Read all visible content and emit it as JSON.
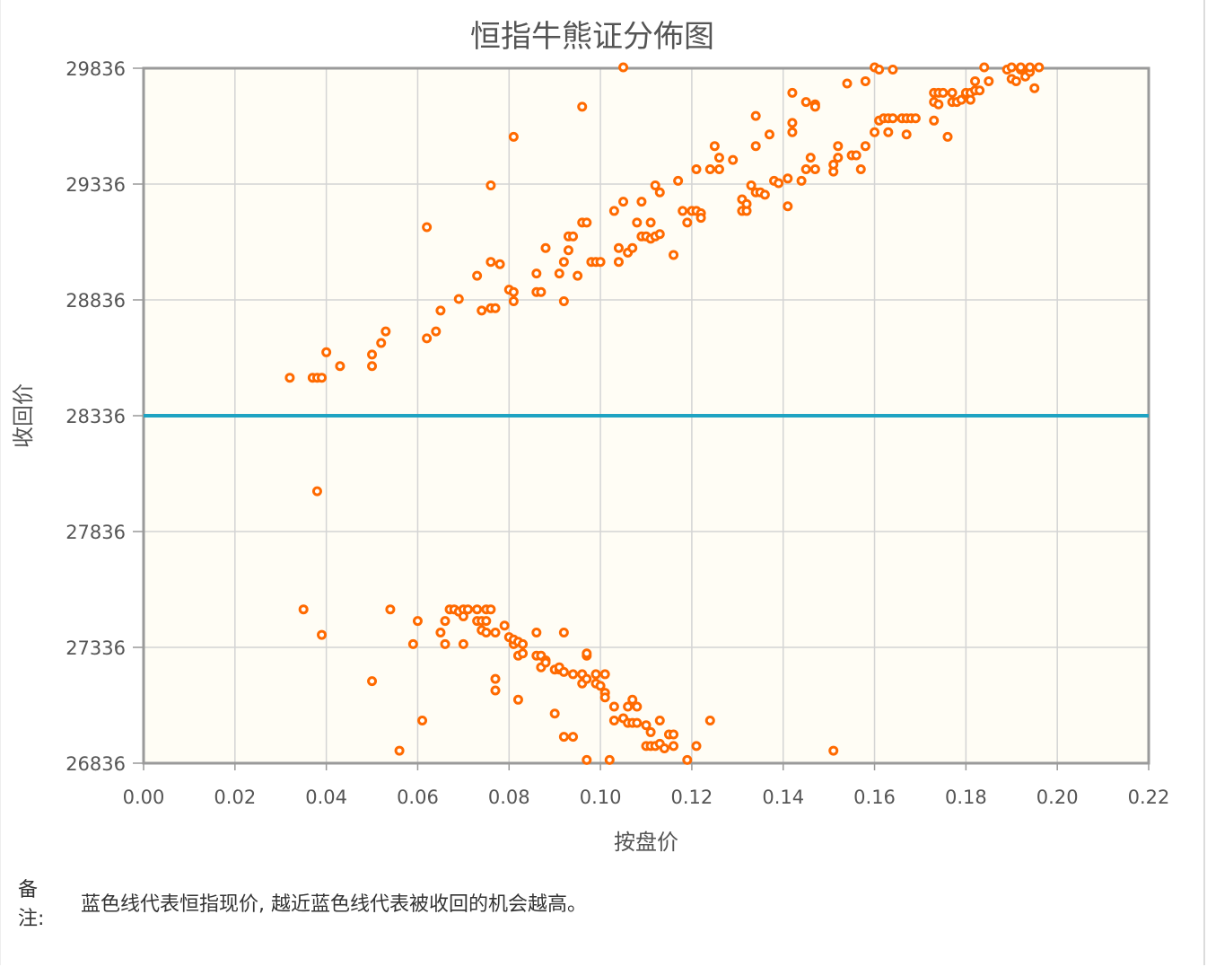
{
  "chart_data": {
    "type": "scatter",
    "title": "恒指牛熊证分佈图",
    "xlabel": "按盘价",
    "ylabel": "收回价",
    "xlim": [
      0,
      0.22
    ],
    "ylim": [
      26836,
      29836
    ],
    "x_ticks": [
      "0.00",
      "0.02",
      "0.04",
      "0.06",
      "0.08",
      "0.10",
      "0.12",
      "0.14",
      "0.16",
      "0.18",
      "0.20",
      "0.22"
    ],
    "y_ticks": [
      "29836",
      "29336",
      "28836",
      "28336",
      "27836",
      "27336",
      "26836"
    ],
    "reference_line": {
      "y": 28336,
      "color": "#1fa3c2"
    },
    "grid": true,
    "legend": "none",
    "series": [
      {
        "color": "#ff6a00",
        "points": [
          [
            0.032,
            28500
          ],
          [
            0.037,
            28500
          ],
          [
            0.038,
            28500
          ],
          [
            0.039,
            28500
          ],
          [
            0.04,
            28610
          ],
          [
            0.043,
            28550
          ],
          [
            0.05,
            28550
          ],
          [
            0.05,
            28600
          ],
          [
            0.052,
            28650
          ],
          [
            0.053,
            28700
          ],
          [
            0.062,
            28670
          ],
          [
            0.064,
            28700
          ],
          [
            0.065,
            28790
          ],
          [
            0.069,
            28840
          ],
          [
            0.073,
            28940
          ],
          [
            0.074,
            28790
          ],
          [
            0.076,
            28800
          ],
          [
            0.077,
            28800
          ],
          [
            0.076,
            29000
          ],
          [
            0.078,
            28990
          ],
          [
            0.08,
            28880
          ],
          [
            0.081,
            28870
          ],
          [
            0.081,
            28830
          ],
          [
            0.086,
            28870
          ],
          [
            0.087,
            28870
          ],
          [
            0.086,
            28950
          ],
          [
            0.088,
            29060
          ],
          [
            0.091,
            28950
          ],
          [
            0.092,
            29000
          ],
          [
            0.092,
            28830
          ],
          [
            0.093,
            29110
          ],
          [
            0.094,
            29110
          ],
          [
            0.093,
            29050
          ],
          [
            0.095,
            28940
          ],
          [
            0.096,
            29170
          ],
          [
            0.097,
            29170
          ],
          [
            0.098,
            29000
          ],
          [
            0.099,
            29000
          ],
          [
            0.1,
            29000
          ],
          [
            0.103,
            29220
          ],
          [
            0.104,
            29000
          ],
          [
            0.104,
            29060
          ],
          [
            0.106,
            29040
          ],
          [
            0.107,
            29060
          ],
          [
            0.105,
            29260
          ],
          [
            0.108,
            29170
          ],
          [
            0.109,
            29260
          ],
          [
            0.109,
            29110
          ],
          [
            0.11,
            29110
          ],
          [
            0.111,
            29100
          ],
          [
            0.112,
            29110
          ],
          [
            0.113,
            29120
          ],
          [
            0.111,
            29170
          ],
          [
            0.112,
            29330
          ],
          [
            0.113,
            29300
          ],
          [
            0.117,
            29350
          ],
          [
            0.116,
            29030
          ],
          [
            0.118,
            29220
          ],
          [
            0.119,
            29170
          ],
          [
            0.12,
            29220
          ],
          [
            0.121,
            29220
          ],
          [
            0.122,
            29210
          ],
          [
            0.122,
            29190
          ],
          [
            0.121,
            29400
          ],
          [
            0.124,
            29400
          ],
          [
            0.126,
            29450
          ],
          [
            0.126,
            29400
          ],
          [
            0.125,
            29500
          ],
          [
            0.129,
            29440
          ],
          [
            0.131,
            29270
          ],
          [
            0.131,
            29220
          ],
          [
            0.132,
            29220
          ],
          [
            0.132,
            29250
          ],
          [
            0.133,
            29330
          ],
          [
            0.134,
            29300
          ],
          [
            0.135,
            29300
          ],
          [
            0.136,
            29290
          ],
          [
            0.134,
            29500
          ],
          [
            0.134,
            29630
          ],
          [
            0.137,
            29550
          ],
          [
            0.138,
            29350
          ],
          [
            0.139,
            29340
          ],
          [
            0.141,
            29360
          ],
          [
            0.142,
            29560
          ],
          [
            0.142,
            29600
          ],
          [
            0.142,
            29730
          ],
          [
            0.141,
            29240
          ],
          [
            0.144,
            29350
          ],
          [
            0.145,
            29400
          ],
          [
            0.146,
            29450
          ],
          [
            0.147,
            29680
          ],
          [
            0.147,
            29670
          ],
          [
            0.145,
            29690
          ],
          [
            0.147,
            29400
          ],
          [
            0.151,
            29390
          ],
          [
            0.151,
            29420
          ],
          [
            0.152,
            29450
          ],
          [
            0.152,
            29500
          ],
          [
            0.154,
            29770
          ],
          [
            0.155,
            29460
          ],
          [
            0.156,
            29460
          ],
          [
            0.157,
            29400
          ],
          [
            0.158,
            29500
          ],
          [
            0.158,
            29780
          ],
          [
            0.16,
            29560
          ],
          [
            0.16,
            29840
          ],
          [
            0.161,
            29830
          ],
          [
            0.161,
            29610
          ],
          [
            0.162,
            29620
          ],
          [
            0.163,
            29620
          ],
          [
            0.163,
            29560
          ],
          [
            0.164,
            29620
          ],
          [
            0.164,
            29830
          ],
          [
            0.166,
            29620
          ],
          [
            0.167,
            29550
          ],
          [
            0.167,
            29620
          ],
          [
            0.168,
            29620
          ],
          [
            0.169,
            29620
          ],
          [
            0.173,
            29610
          ],
          [
            0.173,
            29690
          ],
          [
            0.174,
            29680
          ],
          [
            0.173,
            29730
          ],
          [
            0.174,
            29730
          ],
          [
            0.175,
            29730
          ],
          [
            0.176,
            29540
          ],
          [
            0.177,
            29690
          ],
          [
            0.177,
            29730
          ],
          [
            0.178,
            29690
          ],
          [
            0.179,
            29700
          ],
          [
            0.18,
            29720
          ],
          [
            0.18,
            29730
          ],
          [
            0.181,
            29730
          ],
          [
            0.181,
            29700
          ],
          [
            0.182,
            29740
          ],
          [
            0.182,
            29780
          ],
          [
            0.183,
            29740
          ],
          [
            0.184,
            29840
          ],
          [
            0.185,
            29780
          ],
          [
            0.189,
            29830
          ],
          [
            0.19,
            29840
          ],
          [
            0.19,
            29790
          ],
          [
            0.191,
            29780
          ],
          [
            0.192,
            29830
          ],
          [
            0.192,
            29840
          ],
          [
            0.193,
            29800
          ],
          [
            0.194,
            29820
          ],
          [
            0.195,
            29750
          ],
          [
            0.194,
            29840
          ],
          [
            0.196,
            29840
          ],
          [
            0.105,
            29840
          ],
          [
            0.096,
            29670
          ],
          [
            0.081,
            29540
          ],
          [
            0.076,
            29330
          ],
          [
            0.062,
            29150
          ],
          [
            0.038,
            28010
          ],
          [
            0.035,
            27500
          ],
          [
            0.039,
            27390
          ],
          [
            0.054,
            27500
          ],
          [
            0.059,
            27350
          ],
          [
            0.06,
            27450
          ],
          [
            0.065,
            27400
          ],
          [
            0.066,
            27350
          ],
          [
            0.066,
            27450
          ],
          [
            0.067,
            27500
          ],
          [
            0.068,
            27500
          ],
          [
            0.069,
            27490
          ],
          [
            0.07,
            27500
          ],
          [
            0.071,
            27500
          ],
          [
            0.07,
            27470
          ],
          [
            0.07,
            27350
          ],
          [
            0.073,
            27500
          ],
          [
            0.073,
            27450
          ],
          [
            0.074,
            27450
          ],
          [
            0.074,
            27410
          ],
          [
            0.075,
            27450
          ],
          [
            0.075,
            27500
          ],
          [
            0.075,
            27400
          ],
          [
            0.076,
            27500
          ],
          [
            0.077,
            27400
          ],
          [
            0.079,
            27430
          ],
          [
            0.08,
            27380
          ],
          [
            0.081,
            27350
          ],
          [
            0.081,
            27370
          ],
          [
            0.082,
            27360
          ],
          [
            0.082,
            27300
          ],
          [
            0.083,
            27350
          ],
          [
            0.083,
            27310
          ],
          [
            0.086,
            27300
          ],
          [
            0.086,
            27400
          ],
          [
            0.087,
            27300
          ],
          [
            0.087,
            27250
          ],
          [
            0.088,
            27280
          ],
          [
            0.088,
            27270
          ],
          [
            0.09,
            27240
          ],
          [
            0.091,
            27240
          ],
          [
            0.091,
            27250
          ],
          [
            0.092,
            27230
          ],
          [
            0.092,
            27400
          ],
          [
            0.094,
            27220
          ],
          [
            0.096,
            27180
          ],
          [
            0.096,
            27220
          ],
          [
            0.097,
            27200
          ],
          [
            0.097,
            27300
          ],
          [
            0.097,
            27310
          ],
          [
            0.099,
            27220
          ],
          [
            0.099,
            27180
          ],
          [
            0.1,
            27170
          ],
          [
            0.101,
            27140
          ],
          [
            0.101,
            27220
          ],
          [
            0.101,
            27120
          ],
          [
            0.103,
            27080
          ],
          [
            0.103,
            27020
          ],
          [
            0.105,
            27030
          ],
          [
            0.106,
            27010
          ],
          [
            0.106,
            27080
          ],
          [
            0.107,
            27110
          ],
          [
            0.107,
            27010
          ],
          [
            0.108,
            27080
          ],
          [
            0.108,
            27010
          ],
          [
            0.11,
            27000
          ],
          [
            0.111,
            26970
          ],
          [
            0.11,
            26910
          ],
          [
            0.111,
            26910
          ],
          [
            0.112,
            26910
          ],
          [
            0.113,
            27020
          ],
          [
            0.113,
            26920
          ],
          [
            0.114,
            26900
          ],
          [
            0.115,
            26960
          ],
          [
            0.116,
            26960
          ],
          [
            0.116,
            26910
          ],
          [
            0.119,
            26850
          ],
          [
            0.121,
            26910
          ],
          [
            0.124,
            27020
          ],
          [
            0.05,
            27190
          ],
          [
            0.061,
            27020
          ],
          [
            0.056,
            26890
          ],
          [
            0.077,
            27200
          ],
          [
            0.077,
            27150
          ],
          [
            0.082,
            27110
          ],
          [
            0.09,
            27050
          ],
          [
            0.092,
            26950
          ],
          [
            0.094,
            26950
          ],
          [
            0.097,
            26850
          ],
          [
            0.102,
            26850
          ],
          [
            0.151,
            26890
          ]
        ]
      }
    ]
  },
  "note": {
    "label": "备注:",
    "text": "蓝色线代表恒指现价, 越近蓝色线代表被收回的机会越高。"
  }
}
